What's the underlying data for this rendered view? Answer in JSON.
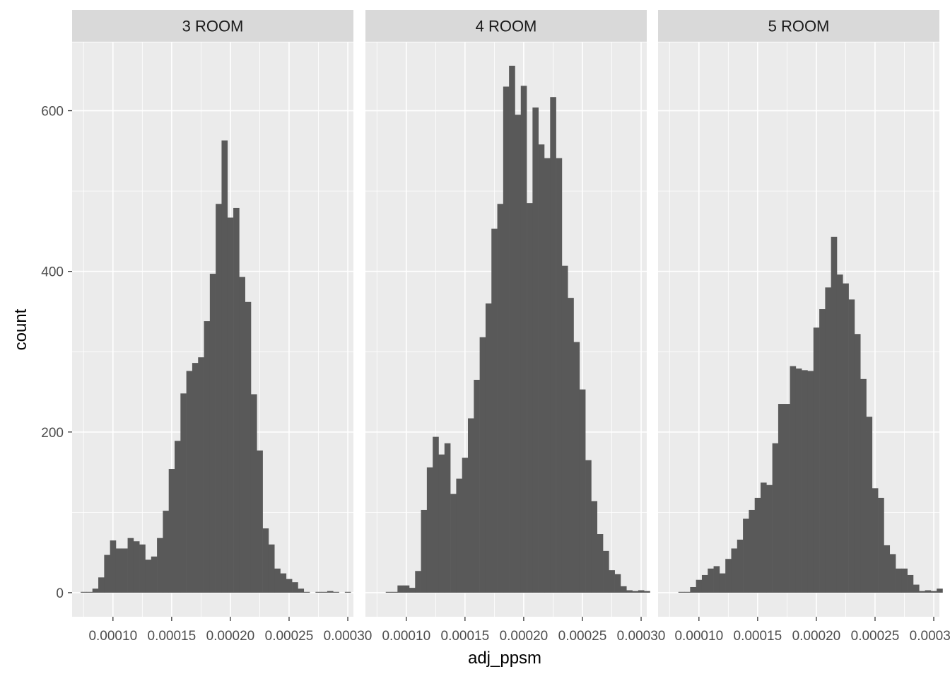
{
  "chart_data": {
    "type": "bar",
    "xlabel": "adj_ppsm",
    "ylabel": "count",
    "xlim": [
      6.52e-05,
      0.0003048
    ],
    "ylim": [
      -30,
      685
    ],
    "x_ticks": [
      0.0001,
      0.00015,
      0.0002,
      0.00025,
      0.0003
    ],
    "x_tick_labels": [
      "0.00010",
      "0.00015",
      "0.00020",
      "0.00025",
      "0.00030"
    ],
    "y_ticks": [
      0,
      200,
      400,
      600
    ],
    "y_tick_labels": [
      "0",
      "200",
      "400",
      "600"
    ],
    "bin_width": 5e-06,
    "bin_start": 7.25e-05,
    "grid": true,
    "colors": {
      "panel_bg": "#ebebeb",
      "strip_bg": "#d9d9d9",
      "grid_major": "#ffffff",
      "bar": "#595959"
    },
    "panels": [
      {
        "name": "3 ROOM",
        "values": [
          1,
          1,
          5,
          19,
          47,
          65,
          55,
          55,
          68,
          64,
          60,
          41,
          45,
          68,
          102,
          154,
          189,
          248,
          276,
          286,
          293,
          338,
          397,
          484,
          563,
          467,
          479,
          393,
          362,
          247,
          177,
          80,
          60,
          30,
          24,
          17,
          13,
          5,
          1,
          0,
          1,
          1,
          2,
          1,
          0,
          1,
          0
        ]
      },
      {
        "name": "4 ROOM",
        "values": [
          0,
          0,
          1,
          1,
          9,
          9,
          6,
          27,
          103,
          156,
          194,
          172,
          186,
          123,
          142,
          168,
          217,
          265,
          318,
          360,
          453,
          484,
          630,
          656,
          595,
          631,
          485,
          604,
          558,
          541,
          617,
          541,
          407,
          367,
          312,
          253,
          165,
          114,
          73,
          52,
          28,
          23,
          8,
          3,
          2,
          3,
          2
        ]
      },
      {
        "name": "5 ROOM",
        "values": [
          0,
          0,
          1,
          1,
          7,
          16,
          22,
          30,
          33,
          24,
          42,
          55,
          66,
          92,
          103,
          118,
          137,
          134,
          186,
          235,
          235,
          282,
          279,
          277,
          276,
          330,
          353,
          380,
          443,
          396,
          385,
          365,
          322,
          266,
          219,
          130,
          118,
          59,
          48,
          30,
          30,
          22,
          10,
          2,
          3,
          2,
          5
        ]
      }
    ]
  }
}
